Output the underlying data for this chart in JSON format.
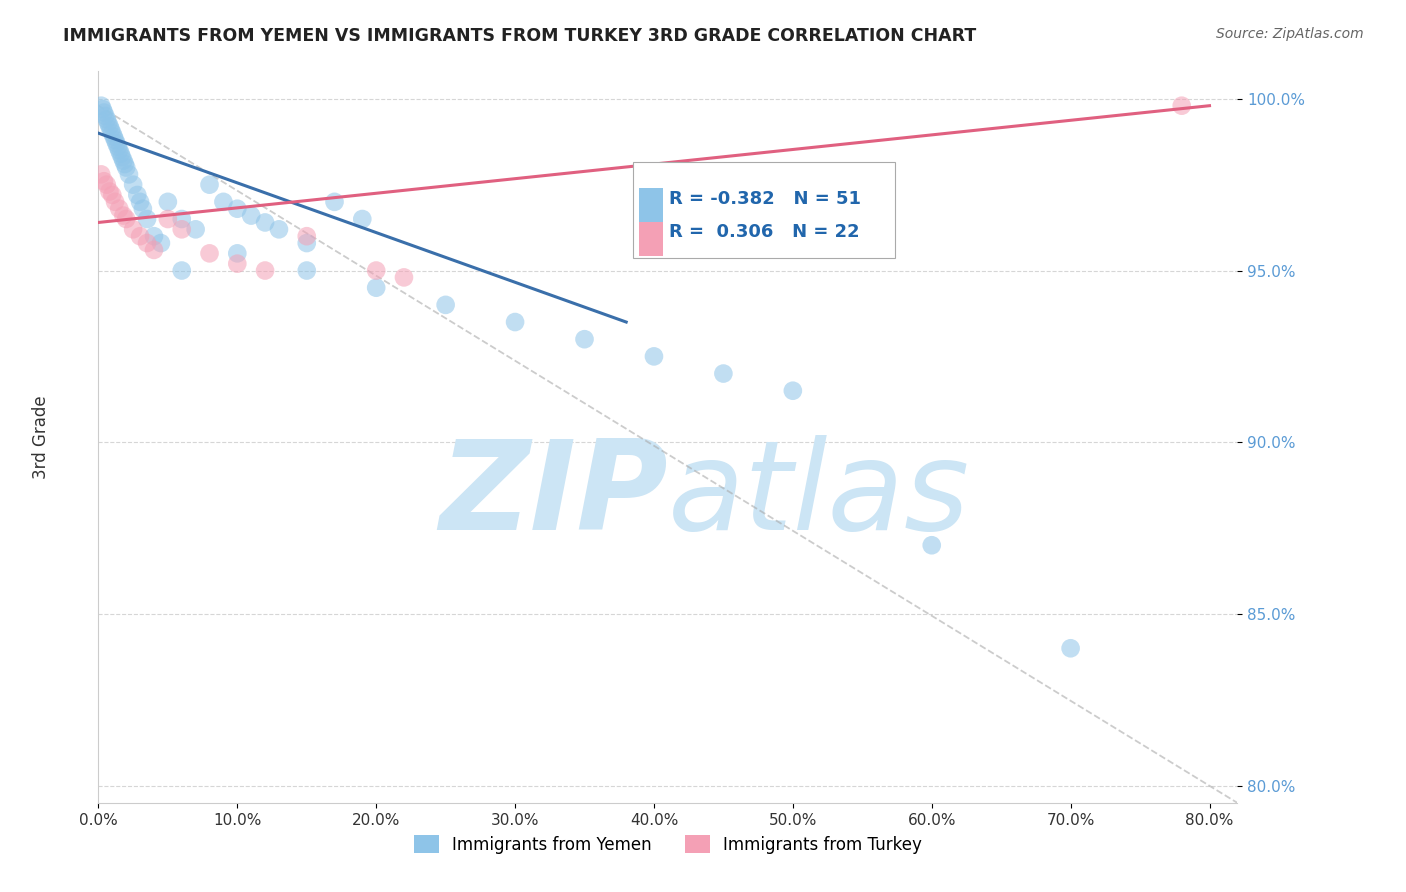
{
  "title": "IMMIGRANTS FROM YEMEN VS IMMIGRANTS FROM TURKEY 3RD GRADE CORRELATION CHART",
  "source": "Source: ZipAtlas.com",
  "ylabel": "3rd Grade",
  "legend_label_blue": "Immigrants from Yemen",
  "legend_label_pink": "Immigrants from Turkey",
  "r_blue": -0.382,
  "n_blue": 51,
  "r_pink": 0.306,
  "n_pink": 22,
  "xlim": [
    0.0,
    0.82
  ],
  "ylim": [
    0.795,
    1.008
  ],
  "xticks": [
    0.0,
    0.1,
    0.2,
    0.3,
    0.4,
    0.5,
    0.6,
    0.7,
    0.8
  ],
  "yticks": [
    0.8,
    0.85,
    0.9,
    0.95,
    1.0
  ],
  "ytick_labels": [
    "80.0%",
    "85.0%",
    "90.0%",
    "95.0%",
    "100.0%"
  ],
  "xtick_labels": [
    "0.0%",
    "10.0%",
    "20.0%",
    "30.0%",
    "40.0%",
    "50.0%",
    "60.0%",
    "70.0%",
    "80.0%"
  ],
  "color_blue": "#8ec4e8",
  "color_pink": "#f4a0b5",
  "line_color_blue": "#3a6faa",
  "line_color_pink": "#e06080",
  "background_color": "#ffffff",
  "watermark_color": "#cce5f5",
  "grid_color": "#cccccc",
  "blue_x": [
    0.002,
    0.003,
    0.004,
    0.005,
    0.006,
    0.007,
    0.008,
    0.009,
    0.01,
    0.011,
    0.012,
    0.013,
    0.014,
    0.015,
    0.016,
    0.017,
    0.018,
    0.019,
    0.02,
    0.022,
    0.025,
    0.028,
    0.03,
    0.032,
    0.035,
    0.04,
    0.045,
    0.05,
    0.06,
    0.07,
    0.08,
    0.09,
    0.1,
    0.11,
    0.12,
    0.13,
    0.15,
    0.17,
    0.19,
    0.06,
    0.1,
    0.15,
    0.2,
    0.25,
    0.3,
    0.35,
    0.4,
    0.45,
    0.5,
    0.6,
    0.7
  ],
  "blue_y": [
    0.998,
    0.997,
    0.996,
    0.995,
    0.994,
    0.993,
    0.992,
    0.991,
    0.99,
    0.989,
    0.988,
    0.987,
    0.986,
    0.985,
    0.984,
    0.983,
    0.982,
    0.981,
    0.98,
    0.978,
    0.975,
    0.972,
    0.97,
    0.968,
    0.965,
    0.96,
    0.958,
    0.97,
    0.965,
    0.962,
    0.975,
    0.97,
    0.968,
    0.966,
    0.964,
    0.962,
    0.958,
    0.97,
    0.965,
    0.95,
    0.955,
    0.95,
    0.945,
    0.94,
    0.935,
    0.93,
    0.925,
    0.92,
    0.915,
    0.87,
    0.84
  ],
  "pink_x": [
    0.002,
    0.004,
    0.006,
    0.008,
    0.01,
    0.012,
    0.015,
    0.018,
    0.02,
    0.025,
    0.03,
    0.035,
    0.04,
    0.05,
    0.06,
    0.08,
    0.1,
    0.12,
    0.15,
    0.2,
    0.22,
    0.78
  ],
  "pink_y": [
    0.978,
    0.976,
    0.975,
    0.973,
    0.972,
    0.97,
    0.968,
    0.966,
    0.965,
    0.962,
    0.96,
    0.958,
    0.956,
    0.965,
    0.962,
    0.955,
    0.952,
    0.95,
    0.96,
    0.95,
    0.948,
    0.998
  ],
  "blue_trend_x": [
    0.0,
    0.38
  ],
  "blue_trend_y": [
    0.99,
    0.935
  ],
  "pink_trend_x": [
    0.0,
    0.8
  ],
  "pink_trend_y": [
    0.964,
    0.998
  ],
  "diag_line_x": [
    0.0,
    0.82
  ],
  "diag_line_y": [
    0.998,
    0.795
  ]
}
